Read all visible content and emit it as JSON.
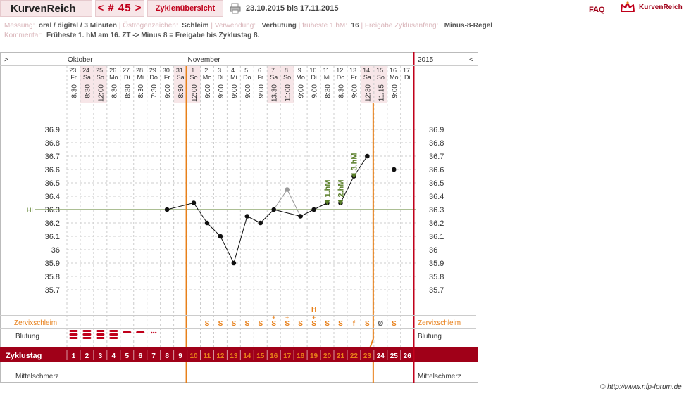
{
  "app": {
    "name": "KurvenReich",
    "cycle_nav": "< # 45 >",
    "overview_tab": "Zyklenübersicht",
    "date_range": "23.10.2015 bis 17.11.2015",
    "faq": "FAQ",
    "brand": "KurvenReich",
    "credit": "© http://www.nfp-forum.de"
  },
  "info": {
    "messung_label": "Messung:",
    "messung_value": "oral / digital / 3 Minuten",
    "oestro_label": "Östrogenzeichen:",
    "oestro_value": "Schleim",
    "verwendung_label": "Verwendung:",
    "verwendung_value": "Verhütung",
    "frueheste_label": "früheste 1.hM:",
    "frueheste_value": "16",
    "freigabe_label": "Freigabe Zyklusanfang:",
    "freigabe_value": "Minus-8-Regel",
    "kommentar_label": "Kommentar:",
    "kommentar_value": "Früheste 1. hM am 16. ZT -> Minus 8 = Freigabe bis Zyklustag 8."
  },
  "colors": {
    "dark_red": "#a00018",
    "accent_red": "#c0001b",
    "orange": "#e8801a",
    "green": "#5a7f2a",
    "weekend": "#f7e6e8",
    "grid": "#ccc"
  },
  "chart_data": {
    "type": "line",
    "months": [
      {
        "name": "Oktober",
        "day_index": 0
      },
      {
        "name": "November",
        "day_index": 9
      }
    ],
    "year": "2015",
    "nav_left": ">",
    "nav_right": "<",
    "days": [
      {
        "d": "23.",
        "w": "Fr",
        "t": "8:30",
        "cd": "1",
        "temp": null,
        "bl": "3"
      },
      {
        "d": "24.",
        "w": "Sa",
        "t": "8:30",
        "cd": "2",
        "temp": null,
        "bl": "3"
      },
      {
        "d": "25.",
        "w": "So",
        "t": "12:00",
        "cd": "3",
        "temp": null,
        "bl": "4"
      },
      {
        "d": "26.",
        "w": "Mo",
        "t": "8:30",
        "cd": "4",
        "temp": null,
        "bl": "4"
      },
      {
        "d": "27.",
        "w": "Di",
        "t": "8:30",
        "cd": "5",
        "temp": null,
        "bl": "1"
      },
      {
        "d": "28.",
        "w": "Mi",
        "t": "8:30",
        "cd": "6",
        "temp": null,
        "bl": "1"
      },
      {
        "d": "29.",
        "w": "Do",
        "t": "7:30",
        "cd": "7",
        "temp": null,
        "bl": "dots"
      },
      {
        "d": "30.",
        "w": "Fr",
        "t": "9:00",
        "cd": "8",
        "temp": 36.3,
        "bl": ""
      },
      {
        "d": "31.",
        "w": "Sa",
        "t": "8:30",
        "cd": "9",
        "temp": null,
        "bl": ""
      },
      {
        "d": "1.",
        "w": "So",
        "t": "12:00",
        "cd": "10",
        "temp": 36.35,
        "bl": ""
      },
      {
        "d": "2.",
        "w": "Mo",
        "t": "9:00",
        "cd": "11",
        "temp": 36.2,
        "bl": ""
      },
      {
        "d": "3.",
        "w": "Di",
        "t": "9:00",
        "cd": "12",
        "temp": 36.1,
        "bl": ""
      },
      {
        "d": "4.",
        "w": "Mi",
        "t": "9:00",
        "cd": "13",
        "temp": 35.9,
        "bl": ""
      },
      {
        "d": "5.",
        "w": "Do",
        "t": "9:00",
        "cd": "14",
        "temp": 36.25,
        "bl": ""
      },
      {
        "d": "6.",
        "w": "Fr",
        "t": "9:00",
        "cd": "15",
        "temp": 36.2,
        "bl": ""
      },
      {
        "d": "7.",
        "w": "Sa",
        "t": "13:30",
        "cd": "16",
        "temp": 36.3,
        "bl": ""
      },
      {
        "d": "8.",
        "w": "So",
        "t": "11:00",
        "cd": "17",
        "temp": 36.45,
        "excluded": true,
        "bl": ""
      },
      {
        "d": "9.",
        "w": "Mo",
        "t": "9:00",
        "cd": "18",
        "temp": 36.25,
        "bl": ""
      },
      {
        "d": "10.",
        "w": "Di",
        "t": "9:00",
        "cd": "19",
        "temp": 36.3,
        "bl": ""
      },
      {
        "d": "11.",
        "w": "Mi",
        "t": "8:30",
        "cd": "20",
        "temp": 36.35,
        "bl": ""
      },
      {
        "d": "12.",
        "w": "Do",
        "t": "8:30",
        "cd": "21",
        "temp": 36.35,
        "bl": ""
      },
      {
        "d": "13.",
        "w": "Fr",
        "t": "9:00",
        "cd": "22",
        "temp": 36.55,
        "bl": ""
      },
      {
        "d": "14.",
        "w": "Sa",
        "t": "12:30",
        "cd": "23",
        "temp": 36.7,
        "bl": ""
      },
      {
        "d": "15.",
        "w": "So",
        "t": "11:15",
        "cd": "24",
        "temp": null,
        "bl": ""
      },
      {
        "d": "16.",
        "w": "Mo",
        "t": "9:00",
        "cd": "25",
        "temp": 36.6,
        "bl": ""
      },
      {
        "d": "17.",
        "w": "Di",
        "t": "",
        "cd": "26",
        "temp": null,
        "bl": ""
      }
    ],
    "weekend_indices": [
      1,
      2,
      8,
      9,
      15,
      16,
      22,
      23
    ],
    "cervix": [
      "",
      "",
      "",
      "",
      "",
      "",
      "",
      "",
      "",
      "",
      "S",
      "S",
      "S",
      "S",
      "S",
      "S+",
      "S+",
      "S",
      "S+",
      "S",
      "S",
      "f",
      "S",
      "Ø",
      "S",
      ""
    ],
    "h_marker": {
      "label": "H",
      "day_index": 18
    },
    "hm_labels": [
      {
        "label": "1.hM",
        "day_index": 19
      },
      {
        "label": "2.hM",
        "day_index": 20
      },
      {
        "label": "3.hM",
        "day_index": 21
      }
    ],
    "coverline": {
      "label": "HL",
      "value": 36.3
    },
    "ylim": [
      35.7,
      36.9
    ],
    "yticks": [
      "36.9",
      "36.8",
      "36.7",
      "36.6",
      "36.5",
      "36.4",
      "36.3",
      "36.2",
      "36.1",
      "36",
      "35.9",
      "35.8",
      "35.7"
    ],
    "rows": {
      "cervix": "Zervixschleim",
      "bleeding": "Blutung",
      "cycle_day": "Zyklustag",
      "pain": "Mittelschmerz"
    },
    "fertile_window": [
      9,
      22
    ]
  }
}
